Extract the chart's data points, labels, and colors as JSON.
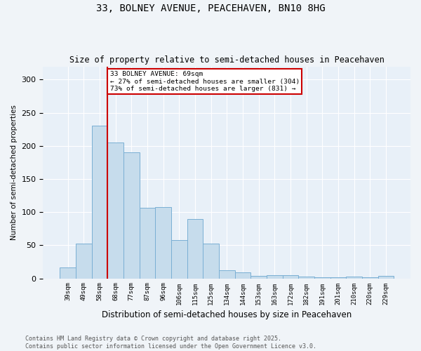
{
  "title1": "33, BOLNEY AVENUE, PEACEHAVEN, BN10 8HG",
  "title2": "Size of property relative to semi-detached houses in Peacehaven",
  "xlabel": "Distribution of semi-detached houses by size in Peacehaven",
  "ylabel": "Number of semi-detached properties",
  "bins": [
    "39sqm",
    "49sqm",
    "58sqm",
    "68sqm",
    "77sqm",
    "87sqm",
    "96sqm",
    "106sqm",
    "115sqm",
    "125sqm",
    "134sqm",
    "144sqm",
    "153sqm",
    "163sqm",
    "172sqm",
    "182sqm",
    "191sqm",
    "201sqm",
    "210sqm",
    "220sqm",
    "229sqm"
  ],
  "values": [
    16,
    53,
    230,
    205,
    190,
    107,
    108,
    58,
    90,
    52,
    12,
    9,
    4,
    5,
    5,
    3,
    2,
    2,
    3,
    2,
    4
  ],
  "bar_color": "#c6dcec",
  "bar_edge_color": "#7aafd4",
  "vline_color": "#cc0000",
  "vline_bin_index": 3,
  "annotation_text": "33 BOLNEY AVENUE: 69sqm\n← 27% of semi-detached houses are smaller (304)\n73% of semi-detached houses are larger (831) →",
  "annotation_box_facecolor": "#ffffff",
  "annotation_box_edgecolor": "#cc0000",
  "footer1": "Contains HM Land Registry data © Crown copyright and database right 2025.",
  "footer2": "Contains public sector information licensed under the Open Government Licence v3.0.",
  "bg_color": "#f0f4f8",
  "plot_bg_color": "#e8f0f8",
  "ylim": [
    0,
    320
  ],
  "yticks": [
    0,
    50,
    100,
    150,
    200,
    250,
    300
  ]
}
